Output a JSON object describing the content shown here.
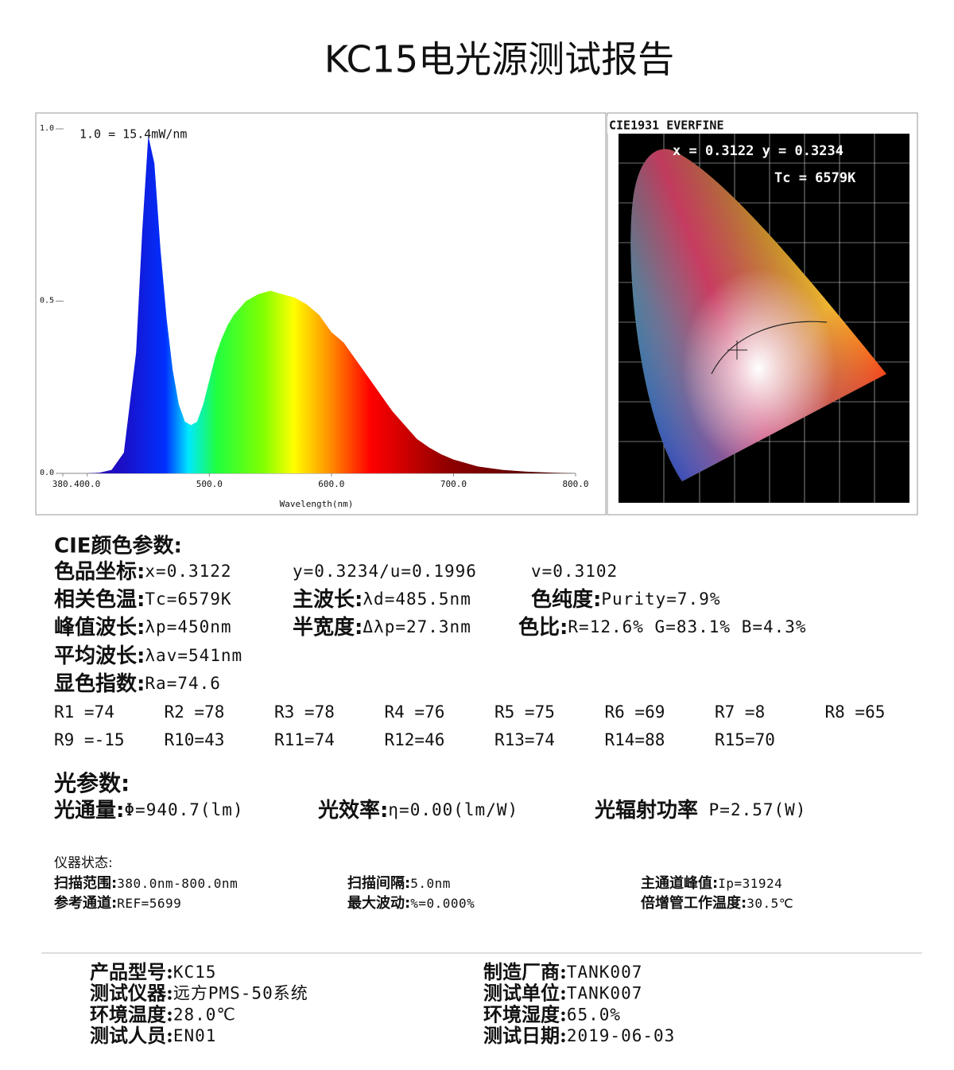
{
  "header": {
    "title": "KC15电光源测试报告"
  },
  "chart_data": {
    "type": "area",
    "annotation": "1.0 = 15.4mW/nm",
    "xlabel": "Wavelength(nm)",
    "x": [
      380,
      390,
      400,
      410,
      420,
      430,
      440,
      445,
      450,
      455,
      460,
      465,
      470,
      475,
      480,
      485,
      490,
      495,
      500,
      505,
      510,
      515,
      520,
      530,
      540,
      550,
      560,
      570,
      580,
      590,
      600,
      610,
      620,
      630,
      640,
      650,
      660,
      670,
      680,
      690,
      700,
      720,
      740,
      760,
      780,
      800
    ],
    "values": [
      0,
      0,
      0,
      0.002,
      0.01,
      0.06,
      0.35,
      0.7,
      0.98,
      0.9,
      0.65,
      0.45,
      0.3,
      0.2,
      0.15,
      0.14,
      0.15,
      0.2,
      0.27,
      0.34,
      0.39,
      0.43,
      0.46,
      0.5,
      0.52,
      0.53,
      0.52,
      0.51,
      0.49,
      0.46,
      0.41,
      0.38,
      0.33,
      0.28,
      0.23,
      0.18,
      0.14,
      0.1,
      0.075,
      0.055,
      0.04,
      0.02,
      0.01,
      0.005,
      0.002,
      0
    ],
    "xlim": [
      380,
      800
    ],
    "ylim": [
      0,
      1
    ],
    "xticks": [
      {
        "value": 380,
        "label": "380."
      },
      {
        "value": 400,
        "label": "400.0"
      },
      {
        "value": 500,
        "label": "500.0"
      },
      {
        "value": 600,
        "label": "600.0"
      },
      {
        "value": 700,
        "label": "700.0"
      },
      {
        "value": 800,
        "label": "800.0"
      }
    ],
    "yticks": [
      {
        "value": 0,
        "label": "0.0"
      },
      0.5,
      {
        "value": 1,
        "label": "1.0"
      }
    ]
  },
  "cie_diagram": {
    "header": "CIE1931 EVERFINE",
    "coords": "x = 0.3122 y = 0.3234",
    "tc": "Tc = 6579K"
  },
  "cie_params": {
    "title": "CIE颜色参数:",
    "rows": [
      [
        {
          "label": "色品坐标:",
          "value": "x=0.3122"
        },
        {
          "value": "y=0.3234/u=0.1996"
        },
        {
          "value": "v=0.3102"
        }
      ],
      [
        {
          "label": "相关色温:",
          "value": "Tc=6579K"
        },
        {
          "label": "主波长:",
          "value": "λd=485.5nm"
        },
        {
          "label": "色纯度:",
          "value": "Purity=7.9%"
        }
      ],
      [
        {
          "label": "峰值波长:",
          "value": "λp=450nm"
        },
        {
          "label": "半宽度:",
          "value": "Δλp=27.3nm"
        },
        {
          "label": "色比:",
          "value": "R=12.6% G=83.1% B=4.3%"
        }
      ],
      [
        {
          "label": "平均波长:",
          "value": "λav=541nm"
        }
      ],
      [
        {
          "label": "显色指数:",
          "value": "Ra=74.6"
        }
      ]
    ],
    "render_indices": [
      "R1 =74",
      "R2 =78",
      "R3 =78",
      "R4 =76",
      "R5 =75",
      "R6 =69",
      "R7 =8",
      "R8 =65",
      "R9 =-15",
      "R10=43",
      "R11=74",
      "R12=46",
      "R13=74",
      "R14=88",
      "R15=70"
    ]
  },
  "light_params": {
    "title": "光参数:",
    "items": [
      {
        "label": "光通量:",
        "value": "Φ=940.7(lm)"
      },
      {
        "label": "光效率:",
        "value": "η=0.00(lm/W)"
      },
      {
        "label": "光辐射功率",
        "value": " P=2.57(W)"
      }
    ]
  },
  "instrument": {
    "title": "仪器状态:",
    "rows": [
      [
        {
          "label": "扫描范围:",
          "value": "380.0nm-800.0nm"
        },
        {
          "label": "扫描间隔:",
          "value": "5.0nm"
        },
        {
          "label": "主通道峰值:",
          "value": "Ip=31924"
        }
      ],
      [
        {
          "label": "参考通道:",
          "value": "REF=5699"
        },
        {
          "label": "最大波动:",
          "value": "%=0.000%"
        },
        {
          "label": "倍增管工作温度:",
          "value": "30.5℃"
        }
      ]
    ]
  },
  "footer": {
    "left": [
      {
        "label": "产品型号:",
        "value": "KC15"
      },
      {
        "label": "测试仪器:",
        "value": "远方PMS-50系统"
      },
      {
        "label": "环境温度:",
        "value": "28.0℃"
      },
      {
        "label": "测试人员:",
        "value": "EN01"
      }
    ],
    "right": [
      {
        "label": "制造厂商:",
        "value": "TANK007"
      },
      {
        "label": "测试单位:",
        "value": "TANK007"
      },
      {
        "label": "环境湿度:",
        "value": "65.0%"
      },
      {
        "label": "测试日期:",
        "value": "2019-06-03"
      }
    ]
  }
}
